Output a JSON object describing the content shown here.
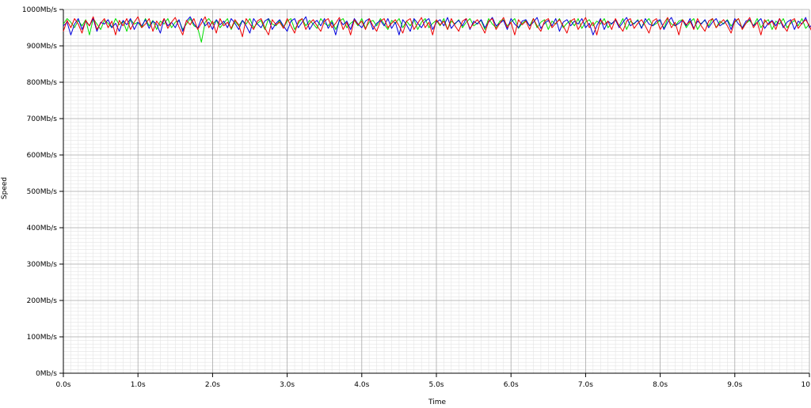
{
  "chart_data": {
    "type": "line",
    "xlabel": "Time",
    "ylabel": "Speed",
    "x_unit": "s",
    "y_unit": "Mb/s",
    "xlim": [
      0,
      10
    ],
    "ylim": [
      0,
      1000
    ],
    "x_ticks": [
      "0.0s",
      "1.0s",
      "2.0s",
      "3.0s",
      "4.0s",
      "5.0s",
      "6.0s",
      "7.0s",
      "8.0s",
      "9.0s",
      "10"
    ],
    "y_ticks": [
      "0Mb/s",
      "100Mb/s",
      "200Mb/s",
      "300Mb/s",
      "400Mb/s",
      "500Mb/s",
      "600Mb/s",
      "700Mb/s",
      "800Mb/s",
      "900Mb/s",
      "1000Mb/s"
    ],
    "grid": true,
    "legend": "none",
    "x_step": 0.05,
    "series": [
      {
        "color": "#00dd00",
        "values": [
          960,
          975,
          965,
          950,
          970,
          955,
          972,
          930,
          975,
          960,
          945,
          970,
          962,
          950,
          975,
          958,
          968,
          940,
          972,
          960,
          965,
          950,
          975,
          955,
          970,
          945,
          968,
          960,
          975,
          950,
          965,
          970,
          945,
          960,
          975,
          955,
          950,
          910,
          965,
          975,
          960,
          970,
          950,
          962,
          975,
          945,
          968,
          955,
          970,
          960,
          975,
          950,
          962,
          970,
          945,
          975,
          960,
          955,
          970,
          950,
          968,
          975,
          945,
          962,
          975,
          955,
          970,
          960,
          948,
          975,
          962,
          955,
          970,
          945,
          968,
          975,
          950,
          962,
          970,
          955,
          975,
          948,
          965,
          970,
          955,
          975,
          960,
          945,
          970,
          962,
          975,
          950,
          968,
          955,
          972,
          945,
          965,
          975,
          950,
          962,
          970,
          955,
          975,
          945,
          968,
          960,
          972,
          950,
          965,
          975,
          955,
          962,
          970,
          945,
          975,
          960,
          950,
          968,
          972,
          955,
          965,
          975,
          948,
          962,
          970,
          955,
          975,
          950,
          965,
          972,
          945,
          968,
          960,
          975,
          950,
          962,
          970,
          955,
          975,
          948,
          965,
          972,
          955,
          968,
          960,
          975,
          950,
          962,
          970,
          955,
          975,
          945,
          968,
          960,
          972,
          950,
          965,
          975,
          955,
          962,
          970,
          948,
          975,
          960,
          955,
          968,
          972,
          950,
          965,
          975,
          945,
          962,
          970,
          955,
          975,
          950,
          968,
          960,
          972,
          955,
          965,
          975,
          948,
          962,
          970,
          955,
          975,
          950,
          965,
          972,
          945,
          968,
          960,
          975,
          950,
          962,
          970,
          955,
          975,
          948,
          960
        ]
      },
      {
        "color": "#0000dd",
        "values": [
          955,
          965,
          930,
          960,
          975,
          945,
          968,
          955,
          975,
          940,
          965,
          960,
          972,
          950,
          962,
          940,
          970,
          958,
          975,
          945,
          965,
          955,
          972,
          948,
          968,
          960,
          935,
          975,
          955,
          965,
          950,
          972,
          940,
          968,
          980,
          960,
          948,
          975,
          955,
          965,
          945,
          972,
          958,
          968,
          950,
          975,
          962,
          945,
          970,
          955,
          935,
          975,
          960,
          950,
          968,
          975,
          945,
          962,
          972,
          955,
          940,
          968,
          975,
          950,
          965,
          980,
          945,
          962,
          970,
          955,
          975,
          948,
          965,
          930,
          972,
          958,
          968,
          945,
          975,
          960,
          950,
          968,
          975,
          945,
          962,
          970,
          955,
          975,
          948,
          965,
          930,
          972,
          958,
          940,
          975,
          962,
          950,
          968,
          975,
          945,
          965,
          972,
          955,
          978,
          948,
          962,
          970,
          955,
          975,
          945,
          968,
          960,
          972,
          950,
          965,
          978,
          955,
          962,
          970,
          945,
          975,
          960,
          950,
          968,
          972,
          955,
          965,
          978,
          948,
          962,
          970,
          955,
          975,
          940,
          965,
          972,
          955,
          968,
          960,
          975,
          950,
          962,
          930,
          955,
          975,
          945,
          968,
          960,
          972,
          950,
          965,
          978,
          955,
          962,
          970,
          948,
          975,
          960,
          955,
          968,
          972,
          945,
          965,
          978,
          955,
          962,
          970,
          955,
          975,
          948,
          968,
          960,
          972,
          950,
          965,
          975,
          955,
          962,
          970,
          945,
          975,
          960,
          950,
          968,
          972,
          955,
          965,
          975,
          948,
          962,
          970,
          955,
          975,
          950,
          965,
          972,
          945,
          968,
          960,
          978,
          950,
          962
        ]
      },
      {
        "color": "#ee0000",
        "values": [
          940,
          970,
          950,
          975,
          960,
          935,
          970,
          955,
          980,
          945,
          962,
          975,
          950,
          968,
          930,
          970,
          955,
          975,
          945,
          965,
          980,
          950,
          960,
          975,
          940,
          968,
          955,
          975,
          948,
          965,
          978,
          952,
          930,
          970,
          958,
          975,
          945,
          962,
          980,
          950,
          968,
          935,
          975,
          955,
          965,
          948,
          972,
          958,
          925,
          975,
          960,
          945,
          968,
          975,
          950,
          930,
          972,
          958,
          965,
          948,
          975,
          955,
          935,
          968,
          975,
          945,
          962,
          972,
          955,
          940,
          968,
          975,
          950,
          962,
          978,
          945,
          965,
          930,
          972,
          958,
          968,
          945,
          975,
          955,
          940,
          968,
          975,
          950,
          962,
          972,
          955,
          935,
          968,
          975,
          945,
          962,
          978,
          950,
          965,
          930,
          972,
          958,
          968,
          945,
          975,
          955,
          940,
          968,
          975,
          948,
          962,
          972,
          955,
          935,
          968,
          975,
          945,
          962,
          978,
          950,
          965,
          930,
          972,
          958,
          968,
          945,
          975,
          955,
          940,
          968,
          975,
          950,
          962,
          972,
          955,
          935,
          968,
          975,
          945,
          962,
          978,
          950,
          965,
          930,
          972,
          958,
          968,
          945,
          975,
          955,
          940,
          968,
          975,
          948,
          962,
          972,
          955,
          935,
          968,
          975,
          945,
          962,
          978,
          950,
          965,
          930,
          972,
          958,
          968,
          945,
          975,
          955,
          940,
          968,
          975,
          950,
          962,
          972,
          955,
          935,
          968,
          975,
          945,
          962,
          978,
          950,
          965,
          930,
          972,
          958,
          968,
          945,
          975,
          955,
          940,
          968,
          975,
          948,
          962,
          972,
          955,
          930
        ]
      }
    ]
  }
}
